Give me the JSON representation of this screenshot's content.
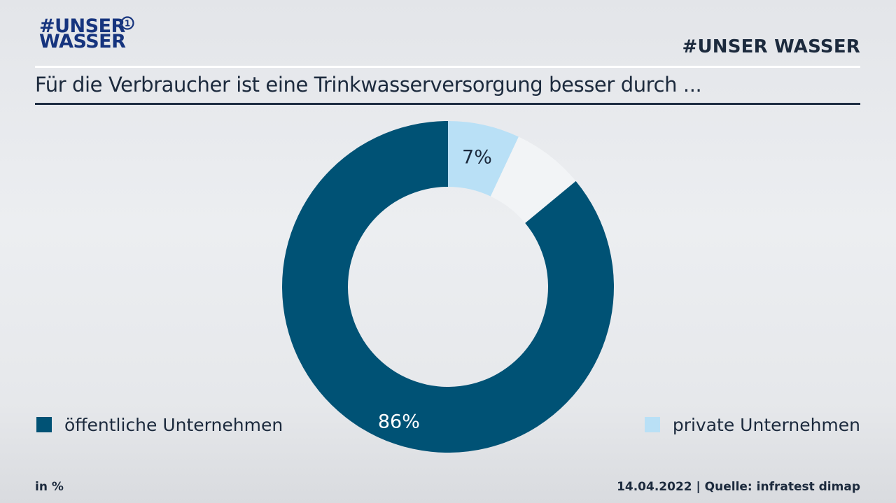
{
  "logo": {
    "line1": "#UNSER",
    "line2": "WASSER",
    "badge": "1"
  },
  "brand": "#UNSER WASSER",
  "chart_data": {
    "type": "pie",
    "variant": "donut",
    "title": "Für die Verbraucher ist eine Trinkwasserversorgung besser durch ...",
    "start": "top, clockwise",
    "slices": [
      {
        "name": "private Unternehmen",
        "value": 7,
        "label": "7%",
        "color": "#b9e0f6",
        "legend": true
      },
      {
        "name": "",
        "value": 7,
        "label": "",
        "color": "#f2f4f6",
        "legend": false
      },
      {
        "name": "öffentliche Unternehmen",
        "value": 86,
        "label": "86%",
        "color": "#005275",
        "legend": true
      }
    ],
    "label_colors": {
      "dark": "#1c2a3d",
      "light": "#ffffff"
    }
  },
  "legend": {
    "left": {
      "label": "öffentliche Unternehmen",
      "color": "#005275"
    },
    "right": {
      "label": "private Unternehmen",
      "color": "#b9e0f6"
    }
  },
  "footer": {
    "unit": "in %",
    "source": "14.04.2022 | Quelle: infratest dimap"
  }
}
